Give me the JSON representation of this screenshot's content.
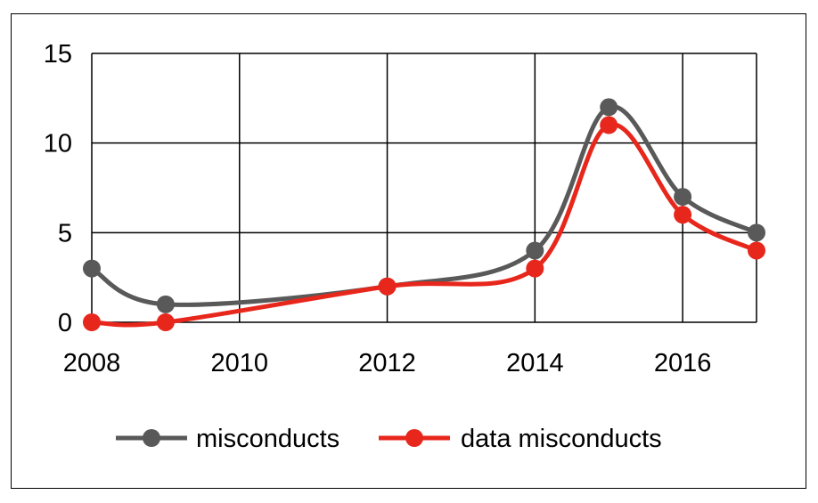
{
  "chart_data": {
    "type": "line",
    "title": "",
    "xlabel": "",
    "ylabel": "",
    "x": [
      2008,
      2009,
      2012,
      2014,
      2015,
      2016,
      2017
    ],
    "xlim": [
      2008,
      2017
    ],
    "ylim": [
      0,
      15
    ],
    "xticks": [
      "2008",
      "2010",
      "2012",
      "2014",
      "2016"
    ],
    "xtick_values": [
      2008,
      2010,
      2012,
      2014,
      2016
    ],
    "yticks": [
      "0",
      "5",
      "10",
      "15"
    ],
    "ytick_values": [
      0,
      5,
      10,
      15
    ],
    "grid": true,
    "smooth": true,
    "legend_position": "bottom",
    "series": [
      {
        "name": "misconducts",
        "color": "#595959",
        "values": [
          3,
          1,
          2,
          4,
          12,
          7,
          5
        ]
      },
      {
        "name": "data misconducts",
        "color": "#e8271c",
        "values": [
          0,
          0,
          2,
          3,
          11,
          6,
          4
        ]
      }
    ]
  }
}
